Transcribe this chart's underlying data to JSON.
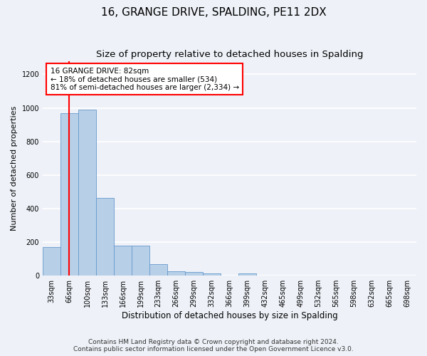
{
  "title": "16, GRANGE DRIVE, SPALDING, PE11 2DX",
  "subtitle": "Size of property relative to detached houses in Spalding",
  "xlabel": "Distribution of detached houses by size in Spalding",
  "ylabel": "Number of detached properties",
  "footnote1": "Contains HM Land Registry data © Crown copyright and database right 2024.",
  "footnote2": "Contains public sector information licensed under the Open Government Licence v3.0.",
  "categories": [
    "33sqm",
    "66sqm",
    "100sqm",
    "133sqm",
    "166sqm",
    "199sqm",
    "233sqm",
    "266sqm",
    "299sqm",
    "332sqm",
    "366sqm",
    "399sqm",
    "432sqm",
    "465sqm",
    "499sqm",
    "532sqm",
    "565sqm",
    "598sqm",
    "632sqm",
    "665sqm",
    "698sqm"
  ],
  "values": [
    170,
    970,
    990,
    465,
    180,
    180,
    70,
    25,
    20,
    12,
    0,
    14,
    0,
    0,
    0,
    0,
    0,
    0,
    0,
    0,
    0
  ],
  "bar_color": "#b8cfe8",
  "bar_edge_color": "#6699cc",
  "property_line_color": "red",
  "annotation_text": "16 GRANGE DRIVE: 82sqm\n← 18% of detached houses are smaller (534)\n81% of semi-detached houses are larger (2,334) →",
  "annotation_box_color": "white",
  "annotation_box_edge_color": "red",
  "ylim": [
    0,
    1280
  ],
  "yticks": [
    0,
    200,
    400,
    600,
    800,
    1000,
    1200
  ],
  "background_color": "#eef2f8",
  "grid_color": "white",
  "title_fontsize": 11,
  "subtitle_fontsize": 9.5,
  "xlabel_fontsize": 8.5,
  "ylabel_fontsize": 8,
  "tick_fontsize": 7,
  "footnote_fontsize": 6.5
}
